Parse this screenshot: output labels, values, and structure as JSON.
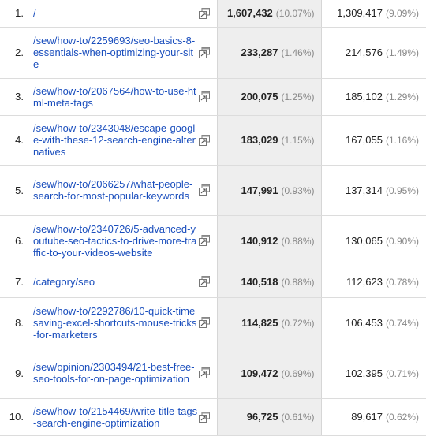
{
  "rows": [
    {
      "rank": "1.",
      "page": "/",
      "pageviews": "1,607,432",
      "pageviews_pct": "(10.07%)",
      "unique_pageviews": "1,309,417",
      "unique_pct": "(9.09%)"
    },
    {
      "rank": "2.",
      "page": "/sew/how-to/2259693/seo-basics-8-essentials-when-optimizing-your-site",
      "pageviews": "233,287",
      "pageviews_pct": "(1.46%)",
      "unique_pageviews": "214,576",
      "unique_pct": "(1.49%)"
    },
    {
      "rank": "3.",
      "page": "/sew/how-to/2067564/how-to-use-html-meta-tags",
      "pageviews": "200,075",
      "pageviews_pct": "(1.25%)",
      "unique_pageviews": "185,102",
      "unique_pct": "(1.29%)"
    },
    {
      "rank": "4.",
      "page": "/sew/how-to/2343048/escape-google-with-these-12-search-engine-alternatives",
      "pageviews": "183,029",
      "pageviews_pct": "(1.15%)",
      "unique_pageviews": "167,055",
      "unique_pct": "(1.16%)"
    },
    {
      "rank": "5.",
      "page": "/sew/how-to/2066257/what-people-search-for-most-popular-keywords",
      "pageviews": "147,991",
      "pageviews_pct": "(0.93%)",
      "unique_pageviews": "137,314",
      "unique_pct": "(0.95%)"
    },
    {
      "rank": "6.",
      "page": "/sew/how-to/2340726/5-advanced-youtube-seo-tactics-to-drive-more-traffic-to-your-videos-website",
      "pageviews": "140,912",
      "pageviews_pct": "(0.88%)",
      "unique_pageviews": "130,065",
      "unique_pct": "(0.90%)"
    },
    {
      "rank": "7.",
      "page": "/category/seo",
      "pageviews": "140,518",
      "pageviews_pct": "(0.88%)",
      "unique_pageviews": "112,623",
      "unique_pct": "(0.78%)"
    },
    {
      "rank": "8.",
      "page": "/sew/how-to/2292786/10-quick-timesaving-excel-shortcuts-mouse-tricks-for-marketers",
      "pageviews": "114,825",
      "pageviews_pct": "(0.72%)",
      "unique_pageviews": "106,453",
      "unique_pct": "(0.74%)"
    },
    {
      "rank": "9.",
      "page": "/sew/opinion/2303494/21-best-free-seo-tools-for-on-page-optimization",
      "pageviews": "109,472",
      "pageviews_pct": "(0.69%)",
      "unique_pageviews": "102,395",
      "unique_pct": "(0.71%)"
    },
    {
      "rank": "10.",
      "page": "/sew/how-to/2154469/write-title-tags-search-engine-optimization",
      "pageviews": "96,725",
      "pageviews_pct": "(0.61%)",
      "unique_pageviews": "89,617",
      "unique_pct": "(0.62%)"
    }
  ],
  "icons": {
    "open_page": "external-window-icon"
  },
  "colors": {
    "link": "#1a4ebd",
    "highlight_column": "#eeeeee",
    "muted": "#888888"
  }
}
